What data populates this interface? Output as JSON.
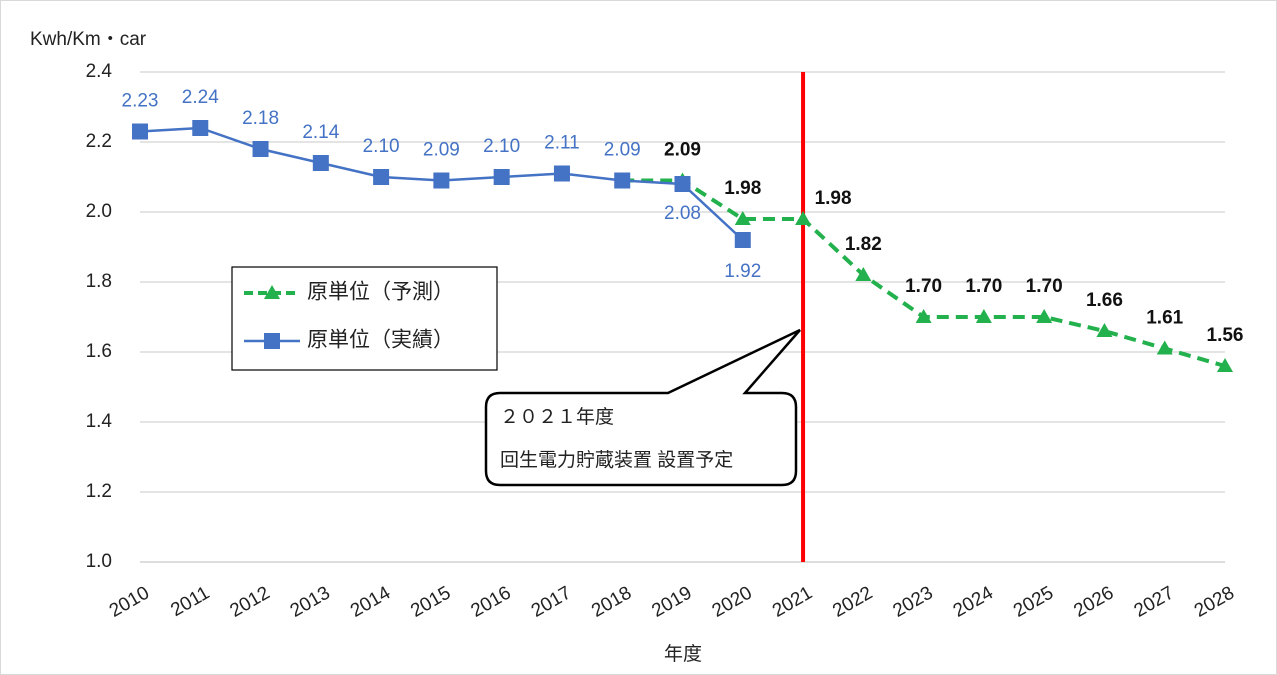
{
  "chart_data": {
    "type": "line",
    "y_axis_label": "Kwh/Km・car",
    "x_axis_label": "年度",
    "categories": [
      "2010",
      "2011",
      "2012",
      "2013",
      "2014",
      "2015",
      "2016",
      "2017",
      "2018",
      "2019",
      "2020",
      "2021",
      "2022",
      "2023",
      "2024",
      "2025",
      "2026",
      "2027",
      "2028"
    ],
    "series": [
      {
        "name": "原単位（予測）",
        "color": "#22b14c",
        "dashed": true,
        "marker": "triangle",
        "values": [
          null,
          null,
          null,
          null,
          null,
          null,
          null,
          null,
          2.09,
          2.09,
          1.98,
          1.98,
          1.82,
          1.7,
          1.7,
          1.7,
          1.66,
          1.61,
          1.56
        ],
        "value_labels": [
          null,
          null,
          null,
          null,
          null,
          null,
          null,
          null,
          null,
          "2.09",
          "1.98",
          "1.98",
          "1.82",
          "1.70",
          "1.70",
          "1.70",
          "1.66",
          "1.61",
          "1.56"
        ]
      },
      {
        "name": "原単位（実績）",
        "color": "#4472c4",
        "dashed": false,
        "marker": "square",
        "values": [
          2.23,
          2.24,
          2.18,
          2.14,
          2.1,
          2.09,
          2.1,
          2.11,
          2.09,
          2.08,
          1.92,
          null,
          null,
          null,
          null,
          null,
          null,
          null,
          null
        ],
        "value_labels": [
          "2.23",
          "2.24",
          "2.18",
          "2.14",
          "2.10",
          "2.09",
          "2.10",
          "2.11",
          "2.09",
          "2.08",
          "1.92",
          null,
          null,
          null,
          null,
          null,
          null,
          null,
          null
        ]
      }
    ],
    "ylim": [
      1.0,
      2.4
    ],
    "yticks": [
      {
        "value": 1.0,
        "label": "1.0"
      },
      {
        "value": 1.2,
        "label": "1.2"
      },
      {
        "value": 1.4,
        "label": "1.4"
      },
      {
        "value": 1.6,
        "label": "1.6"
      },
      {
        "value": 1.8,
        "label": "1.8"
      },
      {
        "value": 2.0,
        "label": "2.0"
      },
      {
        "value": 2.2,
        "label": "2.2"
      },
      {
        "value": 2.4,
        "label": "2.4"
      }
    ],
    "grid": true,
    "marker_line": {
      "category": "2021",
      "color": "#ff0000"
    },
    "annotation": [
      "２０２１年度",
      "回生電力貯蔵装置 設置予定"
    ]
  }
}
